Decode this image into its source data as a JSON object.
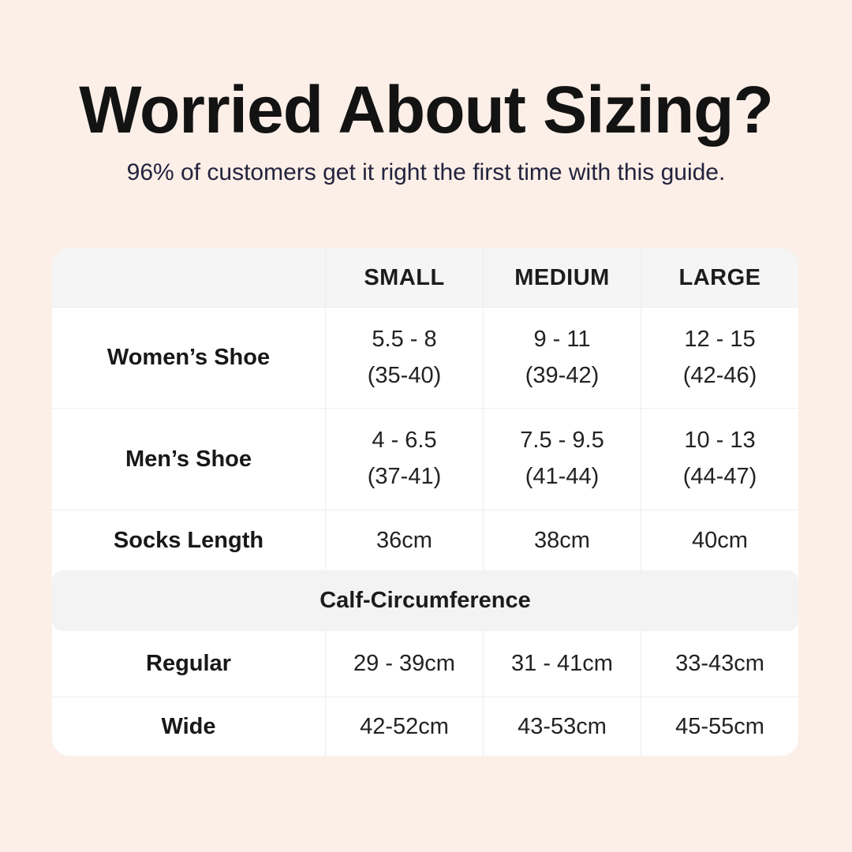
{
  "header": {
    "title": "Worried About Sizing?",
    "subtitle": "96% of customers get it right the first time with this guide."
  },
  "table": {
    "columns": [
      "SMALL",
      "MEDIUM",
      "LARGE"
    ],
    "shoe_rows": [
      {
        "label": "Women’s Shoe",
        "cells": [
          [
            "5.5 - 8",
            "(35-40)"
          ],
          [
            "9 - 11",
            "(39-42)"
          ],
          [
            "12 - 15",
            "(42-46)"
          ]
        ]
      },
      {
        "label": "Men’s Shoe",
        "cells": [
          [
            "4 - 6.5",
            "(37-41)"
          ],
          [
            "7.5 - 9.5",
            "(41-44)"
          ],
          [
            "10 - 13",
            "(44-47)"
          ]
        ]
      }
    ],
    "socks_row": {
      "label": "Socks Length",
      "cells": [
        "36cm",
        "38cm",
        "40cm"
      ]
    },
    "section_header": "Calf-Circumference",
    "calf_rows": [
      {
        "label": "Regular",
        "cells": [
          "29 - 39cm",
          "31 - 41cm",
          "33-43cm"
        ]
      },
      {
        "label": "Wide",
        "cells": [
          "42-52cm",
          "43-53cm",
          "45-55cm"
        ]
      }
    ]
  },
  "colors": {
    "page_background": "#FBEFE7",
    "title_text": "#131313",
    "subtitle_text": "#23233E",
    "table_background": "#FFFFFF",
    "header_row_background": "#F5F5F6",
    "section_band_background": "#F3F3F4",
    "divider": "#EDEDEF",
    "cell_text": "#222222"
  },
  "chart_data": {
    "type": "table",
    "title": "Worried About Sizing?",
    "subtitle": "96% of customers get it right the first time with this guide.",
    "columns": [
      "",
      "SMALL",
      "MEDIUM",
      "LARGE"
    ],
    "rows": [
      [
        "Women’s Shoe",
        "5.5 - 8 (35-40)",
        "9 - 11 (39-42)",
        "12 - 15 (42-46)"
      ],
      [
        "Men’s Shoe",
        "4 - 6.5 (37-41)",
        "7.5 - 9.5 (41-44)",
        "10 - 13 (44-47)"
      ],
      [
        "Socks Length",
        "36cm",
        "38cm",
        "40cm"
      ],
      [
        "Calf-Circumference",
        "",
        "",
        ""
      ],
      [
        "Regular",
        "29 - 39cm",
        "31 - 41cm",
        "33-43cm"
      ],
      [
        "Wide",
        "42-52cm",
        "43-53cm",
        "45-55cm"
      ]
    ],
    "layout": {
      "section_header_row_index": 3,
      "header_row_shaded": true,
      "grid": "light-gray dividers, rounded white card on peach background"
    }
  }
}
